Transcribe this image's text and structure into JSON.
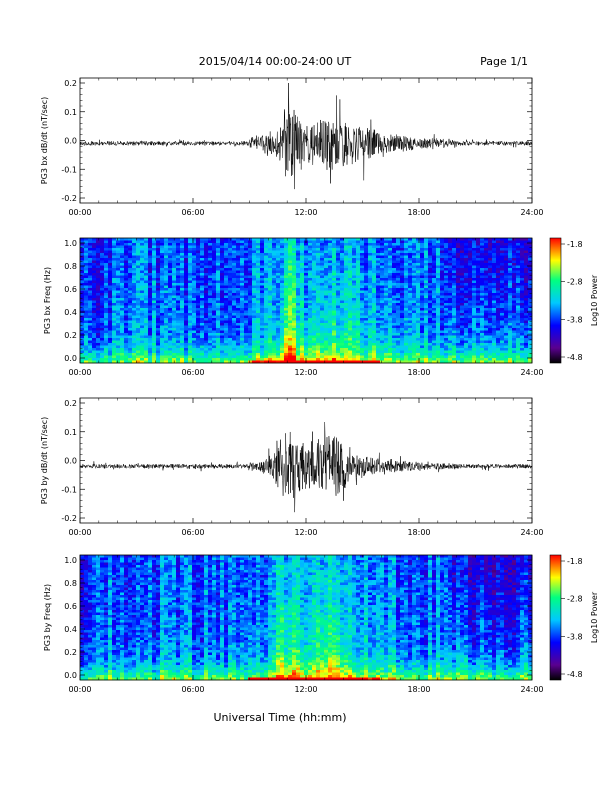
{
  "header": {
    "title": "2015/04/14  00:00-24:00 UT",
    "page": "Page 1/1"
  },
  "x_label": "Universal Time (hh:mm)",
  "x_ticks": [
    "00:00",
    "06:00",
    "12:00",
    "18:00",
    "24:00"
  ],
  "colors": {
    "trace": "#000000",
    "colormap": [
      "#000000",
      "#5a0090",
      "#0000ff",
      "#00c8ff",
      "#00ff80",
      "#ffff00",
      "#ff0000"
    ]
  },
  "chart_data": [
    {
      "type": "line",
      "ylabel": "PG3 bx dB/dt (nT/sec)",
      "xlim": [
        0,
        24
      ],
      "ylim": [
        -0.2,
        0.2
      ],
      "y_ticks": [
        "0.2",
        "0.1",
        "0.0",
        "-0.1",
        "-0.2"
      ],
      "baseline": -0.01,
      "activity": [
        {
          "t": 9.0,
          "amp": 0.02
        },
        {
          "t": 10.5,
          "amp": 0.05
        },
        {
          "t": 11.0,
          "amp": 0.17
        },
        {
          "t": 12.0,
          "amp": 0.07
        },
        {
          "t": 13.5,
          "amp": 0.1
        },
        {
          "t": 15.0,
          "amp": 0.06
        },
        {
          "t": 16.5,
          "amp": 0.035
        },
        {
          "t": 18.0,
          "amp": 0.02
        },
        {
          "t": 20.0,
          "amp": 0.015
        }
      ]
    },
    {
      "type": "heatmap",
      "ylabel": "PG3 bx Freq (Hz)",
      "xlim": [
        0,
        24
      ],
      "ylim": [
        0.0,
        1.0
      ],
      "y_ticks": [
        "1.0",
        "0.8",
        "0.6",
        "0.4",
        "0.2",
        "0.0"
      ],
      "colorbar": {
        "label": "Log10 Power",
        "range": [
          -4.8,
          -1.8
        ],
        "ticks": [
          "-1.8",
          "-2.8",
          "-3.8",
          "-4.8"
        ]
      }
    },
    {
      "type": "line",
      "ylabel": "PG3 by dB/dt (nT/sec)",
      "xlim": [
        0,
        24
      ],
      "ylim": [
        -0.2,
        0.2
      ],
      "y_ticks": [
        "0.2",
        "0.1",
        "0.0",
        "-0.1",
        "-0.2"
      ],
      "baseline": -0.02,
      "activity": [
        {
          "t": 9.0,
          "amp": 0.015
        },
        {
          "t": 10.0,
          "amp": 0.03
        },
        {
          "t": 11.0,
          "amp": 0.13
        },
        {
          "t": 12.0,
          "amp": 0.08
        },
        {
          "t": 13.5,
          "amp": 0.12
        },
        {
          "t": 14.5,
          "amp": 0.05
        },
        {
          "t": 16.0,
          "amp": 0.03
        },
        {
          "t": 18.0,
          "amp": 0.015
        },
        {
          "t": 20.0,
          "amp": 0.01
        }
      ]
    },
    {
      "type": "heatmap",
      "ylabel": "PG3 by Freq (Hz)",
      "xlim": [
        0,
        24
      ],
      "ylim": [
        0.0,
        1.0
      ],
      "y_ticks": [
        "1.0",
        "0.8",
        "0.6",
        "0.4",
        "0.2",
        "0.0"
      ],
      "colorbar": {
        "label": "Log10 Power",
        "range": [
          -4.8,
          -1.8
        ],
        "ticks": [
          "-1.8",
          "-2.8",
          "-3.8",
          "-4.8"
        ]
      }
    }
  ]
}
